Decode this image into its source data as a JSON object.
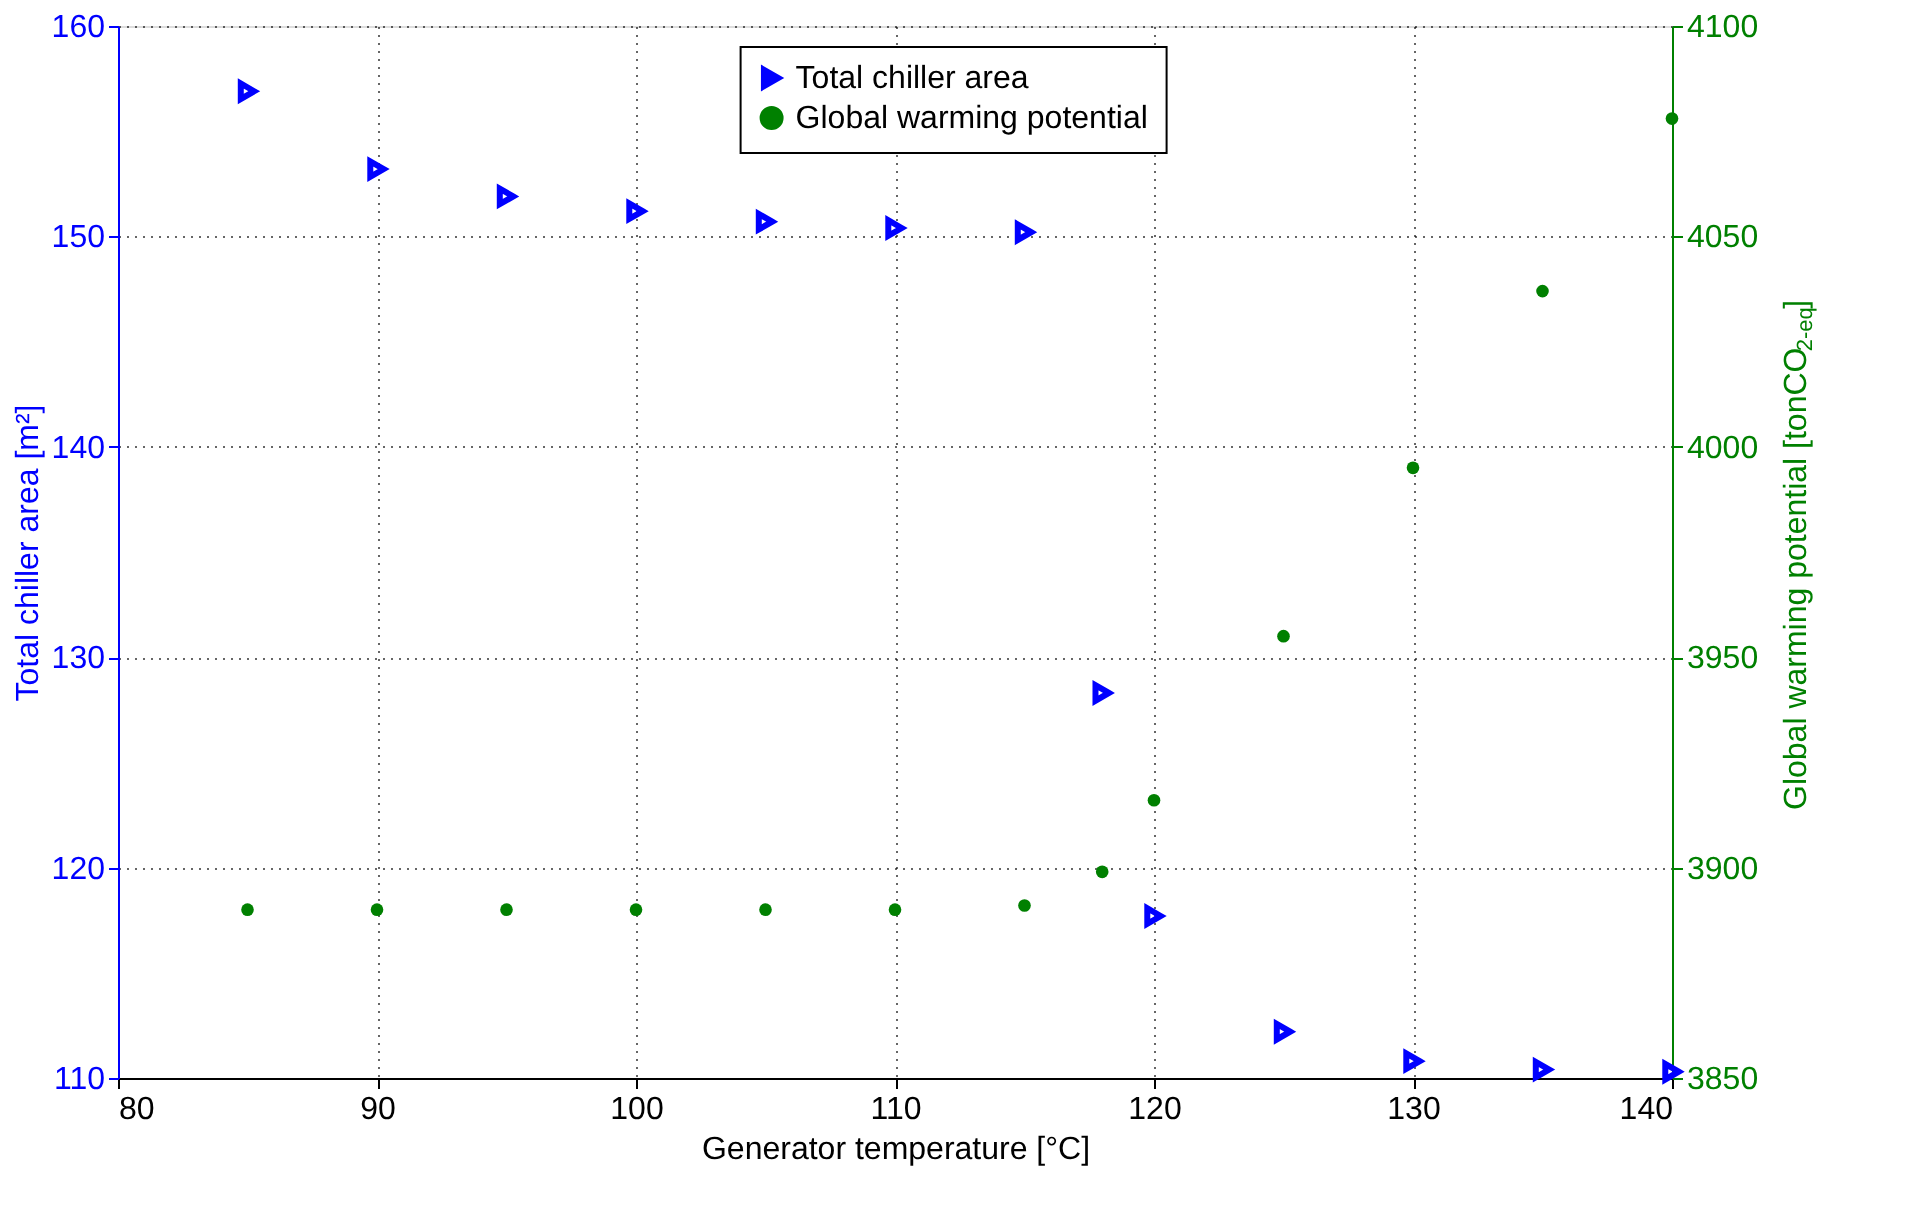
{
  "chart_data": {
    "type": "scatter",
    "xlabel": "Generator temperature [°C]",
    "ylabel": "Total chiller area [m²]",
    "y2label": "Global warming potential [tonCO$_{2-eq}$]",
    "x": [
      85,
      90,
      95,
      100,
      105,
      110,
      115,
      118,
      120,
      125,
      130,
      135,
      140
    ],
    "series": [
      {
        "name": "Total chiller area",
        "color": "#0000ff",
        "marker": "triangle",
        "values": [
          156.9,
          153.2,
          151.9,
          151.2,
          150.7,
          150.4,
          150.2,
          128.3,
          117.7,
          112.2,
          110.8,
          110.4,
          110.3
        ]
      },
      {
        "name": "Global warming potential",
        "color": "#008000",
        "marker": "circle",
        "axis": "y2",
        "values": [
          3890,
          3890,
          3890,
          3890,
          3890,
          3890,
          3891,
          3899,
          3916,
          3955,
          3995,
          4037,
          4078
        ]
      }
    ],
    "xlim": [
      80,
      140
    ],
    "xticks": [
      80,
      90,
      100,
      110,
      120,
      130,
      140
    ],
    "ylim": [
      110,
      160
    ],
    "yticks": [
      110,
      120,
      130,
      140,
      150,
      160
    ],
    "y2lim": [
      3850,
      4100
    ],
    "y2ticks": [
      3850,
      3900,
      3950,
      4000,
      4050,
      4100
    ],
    "grid": true,
    "legend": "top"
  }
}
